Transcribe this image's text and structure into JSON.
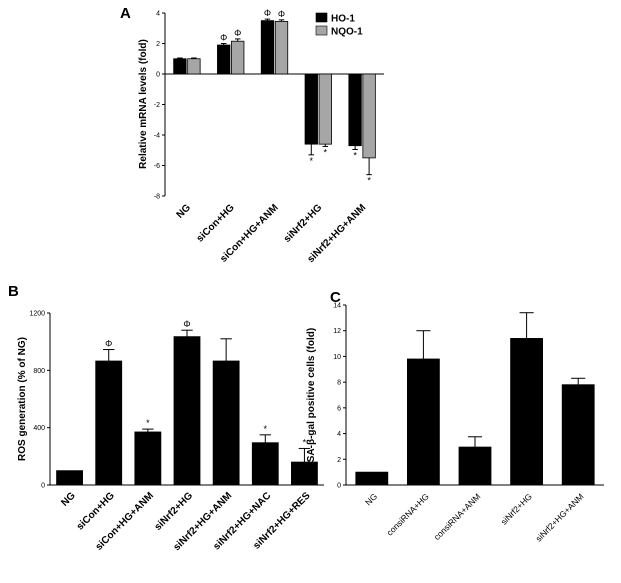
{
  "chart_data": [
    {
      "panel": "A",
      "type": "bar",
      "ylabel": "Relative mRNA levels (fold)",
      "ylim": [
        -8,
        4
      ],
      "yticks": [
        4,
        2,
        0,
        -2,
        -4,
        -6,
        -8
      ],
      "categories": [
        "NG",
        "siCon+HG",
        "siCon+HG+ANM",
        "siNrf2+HG",
        "siNrf2+HG+ANM"
      ],
      "series": [
        {
          "name": "HO-1",
          "color": "#000000",
          "values": [
            1.0,
            1.9,
            3.5,
            -4.6,
            -4.7
          ],
          "errors": [
            0.05,
            0.1,
            0.1,
            0.7,
            0.25
          ],
          "marks": [
            "",
            "Φ",
            "Φ",
            "*",
            "*"
          ]
        },
        {
          "name": "NQO-1",
          "color": "#a6a6a6",
          "values": [
            1.0,
            2.15,
            3.45,
            -4.6,
            -5.5
          ],
          "errors": [
            0.05,
            0.15,
            0.1,
            0.15,
            1.1
          ],
          "marks": [
            "",
            "Φ",
            "Φ",
            "*",
            "*"
          ]
        }
      ],
      "legend": "top-right"
    },
    {
      "panel": "B",
      "type": "bar",
      "ylabel": "ROS generation (% of NG)",
      "ylim": [
        0,
        1200
      ],
      "yticks": [
        0,
        400,
        800,
        1200
      ],
      "categories": [
        "NG",
        "siCon+HG",
        "siCon+HG+ANM",
        "siNrf2+HG",
        "siNrf2+HG+ANM",
        "siNrf2+HG+NAC",
        "siNrf2+HG+RES"
      ],
      "series": [
        {
          "name": "ROS",
          "color": "#000000",
          "values": [
            100,
            865,
            370,
            1035,
            865,
            295,
            160
          ],
          "errors": [
            0,
            80,
            20,
            45,
            155,
            55,
            95
          ],
          "marks": [
            "",
            "Φ",
            "*",
            "Φ",
            "",
            "*",
            "*"
          ]
        }
      ]
    },
    {
      "panel": "C",
      "type": "bar",
      "ylabel": "SA-β-gal positive cells (fold)",
      "ylim": [
        0,
        14
      ],
      "yticks": [
        0,
        2,
        4,
        6,
        8,
        10,
        12,
        14
      ],
      "categories": [
        "NG",
        "consiRNA+HG",
        "consiRNA+ANM",
        "siNrf2+HG",
        "siNrf2+HG+ANM"
      ],
      "series": [
        {
          "name": "SA-β-gal",
          "color": "#000000",
          "values": [
            1.0,
            9.8,
            2.95,
            11.4,
            7.8
          ],
          "errors": [
            0,
            2.2,
            0.8,
            2.0,
            0.5
          ],
          "marks": [
            "",
            "",
            "",
            "",
            ""
          ]
        }
      ]
    }
  ]
}
